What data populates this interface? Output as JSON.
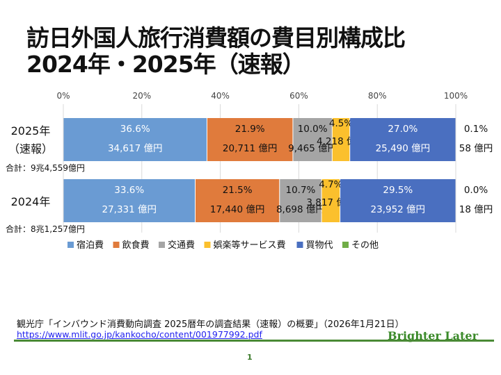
{
  "title_line1": "訪日外国人旅行消費額の費目別構成比",
  "title_line2": "2024年・2025年（速報）",
  "chart_data": {
    "type": "bar",
    "orientation": "horizontal-stacked-100",
    "xlim": [
      0,
      100
    ],
    "x_ticks": [
      "0%",
      "20%",
      "40%",
      "60%",
      "80%",
      "100%"
    ],
    "grid": true,
    "legend_position": "bottom",
    "categories": [
      {
        "label_line1": "2025年",
        "label_line2": "（速報）",
        "total": "合計：9兆4,559億円"
      },
      {
        "label_line1": "2024年",
        "label_line2": "",
        "total": "合計：8兆1,257億円"
      }
    ],
    "series": [
      {
        "name": "宿泊費",
        "color": "#6a9bd3",
        "text_color": "#ffffff",
        "values": [
          36.6,
          33.6
        ],
        "pct_labels": [
          "36.6%",
          "33.6%"
        ],
        "amount_labels": [
          "34,617 億円",
          "27,331 億円"
        ]
      },
      {
        "name": "飲食費",
        "color": "#e07b3c",
        "text_color": "#111111",
        "values": [
          21.9,
          21.5
        ],
        "pct_labels": [
          "21.9%",
          "21.5%"
        ],
        "amount_labels": [
          "20,711 億円",
          "17,440 億円"
        ]
      },
      {
        "name": "交通費",
        "color": "#a5a5a5",
        "text_color": "#111111",
        "values": [
          10.0,
          10.7
        ],
        "pct_labels": [
          "10.0%",
          "10.7%"
        ],
        "amount_labels": [
          "9,465 億円",
          "8,698 億円"
        ]
      },
      {
        "name": "娯楽等サービス費",
        "color": "#fbc02d",
        "text_color": "#111111",
        "values": [
          4.5,
          4.7
        ],
        "pct_labels": [
          "4.5%",
          "4.7%"
        ],
        "amount_labels": [
          "4,218 億円",
          "3,817 億円"
        ]
      },
      {
        "name": "買物代",
        "color": "#4a6fc0",
        "text_color": "#ffffff",
        "values": [
          27.0,
          29.5
        ],
        "pct_labels": [
          "27.0%",
          "29.5%"
        ],
        "amount_labels": [
          "25,490 億円",
          "23,952 億円"
        ]
      },
      {
        "name": "その他",
        "color": "#70ad47",
        "text_color": "#111111",
        "values": [
          0.1,
          0.0
        ],
        "pct_labels": [
          "0.1%",
          "0.0%"
        ],
        "amount_labels": [
          "58 億円",
          "18 億円"
        ]
      }
    ]
  },
  "source_text": "観光庁「インバウンド消費動向調査 2025暦年の調査結果（速報）の概要」（2026年1月21日）",
  "source_url": "https://www.mlit.go.jp/kankocho/content/001977992.pdf",
  "brand": "Brighter Later",
  "page_number": "1"
}
